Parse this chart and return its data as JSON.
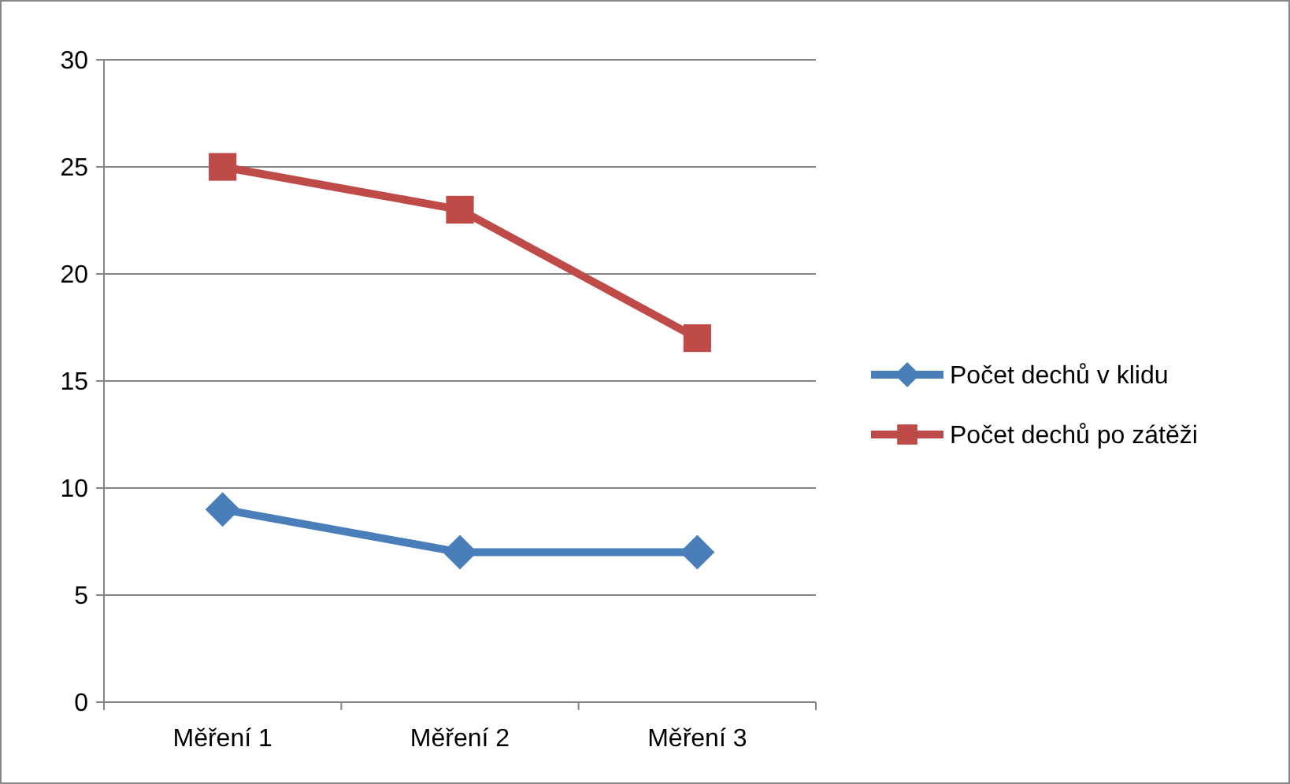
{
  "chart_data": {
    "type": "line",
    "categories": [
      "Měření 1",
      "Měření 2",
      "Měření 3"
    ],
    "series": [
      {
        "name": "Počet dechů v klidu",
        "color": "#4a7ebb",
        "marker": "diamond",
        "values": [
          9,
          7,
          7
        ]
      },
      {
        "name": "Počet dechů po zátěži",
        "color": "#be4b48",
        "marker": "square",
        "values": [
          25,
          23,
          17
        ]
      }
    ],
    "ylim": [
      0,
      30
    ],
    "yticks": [
      0,
      5,
      10,
      15,
      20,
      25,
      30
    ],
    "grid": "y",
    "legend": "right"
  }
}
